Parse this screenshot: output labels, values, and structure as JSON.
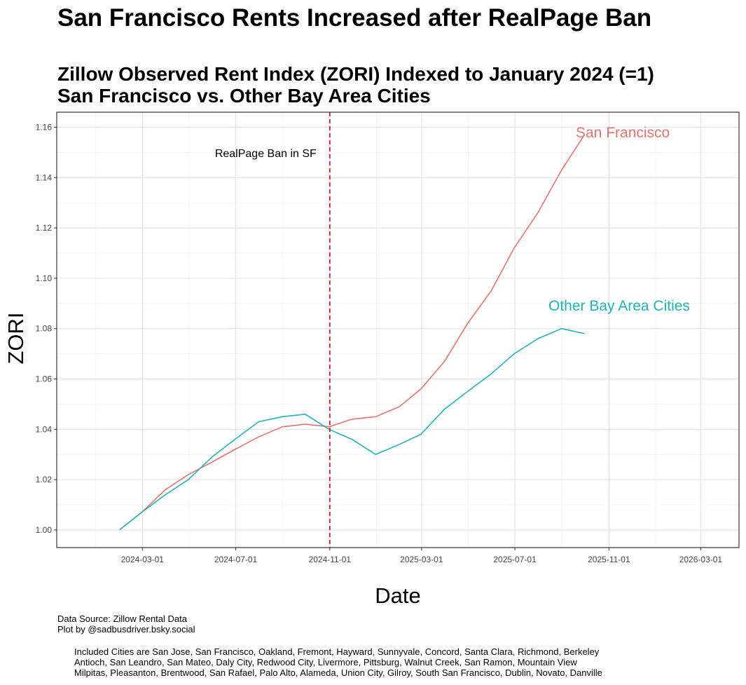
{
  "chart_data": {
    "type": "line",
    "title": "San Francisco Rents Increased after RealPage Ban",
    "subtitle_lines": [
      "Zillow Observed Rent Index (ZORI) Indexed to January 2024 (=1)",
      "San Francisco vs. Other Bay Area Cities"
    ],
    "xlabel": "Date",
    "ylabel": "ZORI",
    "x_ticks": [
      "2024-03-01",
      "2024-07-01",
      "2024-11-01",
      "2025-03-01",
      "2025-07-01",
      "2025-11-01",
      "2026-03-01"
    ],
    "y_ticks": [
      "1.00",
      "1.02",
      "1.04",
      "1.06",
      "1.08",
      "1.10",
      "1.12",
      "1.14",
      "1.16"
    ],
    "xlim": [
      "2023-11-10",
      "2026-04-20"
    ],
    "ylim": [
      0.993,
      1.166
    ],
    "grid": true,
    "series": [
      {
        "name": "San Francisco",
        "color": "#E8736C",
        "x": [
          "2024-01-31",
          "2024-02-29",
          "2024-03-31",
          "2024-04-30",
          "2024-05-31",
          "2024-06-30",
          "2024-07-31",
          "2024-08-31",
          "2024-09-30",
          "2024-10-31",
          "2024-11-30",
          "2024-12-31",
          "2025-01-31",
          "2025-02-28",
          "2025-03-31",
          "2025-04-30",
          "2025-05-31",
          "2025-06-30",
          "2025-07-31",
          "2025-08-31",
          "2025-09-30"
        ],
        "values": [
          1.0,
          1.007,
          1.016,
          1.022,
          1.027,
          1.032,
          1.037,
          1.041,
          1.042,
          1.041,
          1.044,
          1.045,
          1.049,
          1.056,
          1.067,
          1.082,
          1.095,
          1.112,
          1.126,
          1.143,
          1.157
        ]
      },
      {
        "name": "Other Bay Area Cities",
        "color": "#1EB5B9",
        "x": [
          "2024-01-31",
          "2024-02-29",
          "2024-03-31",
          "2024-04-30",
          "2024-05-31",
          "2024-06-30",
          "2024-07-31",
          "2024-08-31",
          "2024-09-30",
          "2024-10-31",
          "2024-11-30",
          "2024-12-31",
          "2025-01-31",
          "2025-02-28",
          "2025-03-31",
          "2025-04-30",
          "2025-05-31",
          "2025-06-30",
          "2025-07-31",
          "2025-08-31",
          "2025-09-30"
        ],
        "values": [
          1.0,
          1.007,
          1.014,
          1.02,
          1.029,
          1.036,
          1.043,
          1.045,
          1.046,
          1.04,
          1.036,
          1.03,
          1.034,
          1.038,
          1.048,
          1.055,
          1.062,
          1.07,
          1.076,
          1.08,
          1.078
        ]
      }
    ],
    "vline": {
      "x": "2024-11-01",
      "color": "#D7191C",
      "style": "dashed",
      "label": "RealPage Ban in SF"
    }
  },
  "footer": {
    "source_lines": [
      "Data Source: Zillow Rental Data",
      "Plot by @sadbusdriver.bsky.social"
    ],
    "cities_lines": [
      "Included Cities are San Jose, San Francisco, Oakland, Fremont, Hayward, Sunnyvale, Concord, Santa Clara, Richmond, Berkeley",
      "Antioch, San Leandro, San Mateo, Daly City, Redwood City, Livermore, Pittsburg, Walnut Creek, San Ramon, Mountain View",
      "Milpitas, Pleasanton, Brentwood, San Rafael, Palo Alto, Alameda, Union City, Gilroy, South San Francisco, Dublin, Novato, Danville"
    ]
  }
}
